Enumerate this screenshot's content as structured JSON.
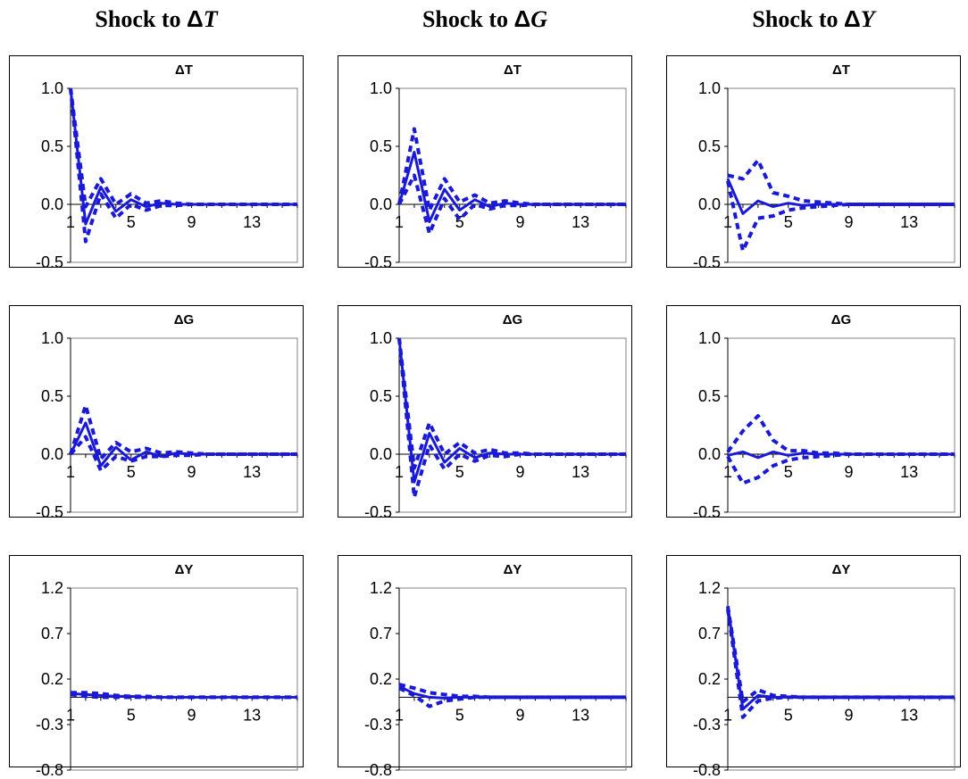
{
  "column_titles": [
    {
      "prefix": "Shock to ",
      "delta": "Δ",
      "var": "T"
    },
    {
      "prefix": "Shock to ",
      "delta": "Δ",
      "var": "G"
    },
    {
      "prefix": "Shock to ",
      "delta": "Δ",
      "var": "Y"
    }
  ],
  "colors": {
    "series": "#1a1ad6",
    "axis": "#000000",
    "plotBorder": "#808080"
  },
  "chart_data": [
    {
      "type": "line",
      "shock": "ΔT",
      "title": "ΔT",
      "ylim": [
        -0.5,
        1.0
      ],
      "yticks": [
        "1.0",
        "0.5",
        "0.0",
        "-0.5"
      ],
      "xticks": [
        "1",
        "5",
        "9",
        "13"
      ],
      "series": [
        {
          "style": "solid",
          "values": [
            1.0,
            -0.17,
            0.15,
            -0.06,
            0.04,
            -0.02,
            0.01,
            0,
            0,
            0,
            0,
            0,
            0,
            0,
            0,
            0
          ]
        },
        {
          "style": "dashed",
          "values": [
            1.0,
            -0.32,
            0.09,
            -0.12,
            0.0,
            -0.05,
            -0.01,
            -0.01,
            0,
            0,
            0,
            0,
            0,
            0,
            0,
            0
          ]
        },
        {
          "style": "dashed",
          "values": [
            1.0,
            -0.02,
            0.22,
            0.0,
            0.09,
            0.01,
            0.03,
            0.01,
            0,
            0,
            0,
            0,
            0,
            0,
            0,
            0
          ]
        }
      ]
    },
    {
      "type": "line",
      "shock": "ΔG",
      "title": "ΔT",
      "ylim": [
        -0.5,
        1.0
      ],
      "yticks": [
        "1.0",
        "0.5",
        "0.0",
        "-0.5"
      ],
      "xticks": [
        "1",
        "5",
        "9",
        "13"
      ],
      "series": [
        {
          "style": "solid",
          "values": [
            0.0,
            0.45,
            -0.15,
            0.13,
            -0.05,
            0.04,
            -0.02,
            0.01,
            0,
            0,
            0,
            0,
            0,
            0,
            0,
            0
          ]
        },
        {
          "style": "dashed",
          "values": [
            0.0,
            0.25,
            -0.25,
            0.05,
            -0.13,
            0.0,
            -0.04,
            -0.01,
            -0.01,
            0,
            0,
            0,
            0,
            0,
            0,
            0
          ]
        },
        {
          "style": "dashed",
          "values": [
            0.0,
            0.65,
            -0.05,
            0.22,
            0.02,
            0.08,
            0.01,
            0.03,
            0.01,
            0,
            0,
            0,
            0,
            0,
            0,
            0
          ]
        }
      ]
    },
    {
      "type": "line",
      "shock": "ΔY",
      "title": "ΔT",
      "ylim": [
        -0.5,
        1.0
      ],
      "yticks": [
        "1.0",
        "0.5",
        "0.0",
        "-0.5"
      ],
      "xticks": [
        "1",
        "5",
        "9",
        "13"
      ],
      "series": [
        {
          "style": "solid",
          "values": [
            0.22,
            -0.08,
            0.03,
            -0.02,
            0.01,
            -0.01,
            0,
            0,
            0,
            0,
            0,
            0,
            0,
            0,
            0,
            0
          ]
        },
        {
          "style": "dashed",
          "values": [
            0.2,
            -0.4,
            -0.12,
            -0.1,
            -0.05,
            -0.03,
            -0.02,
            -0.01,
            0,
            0,
            0,
            0,
            0,
            0,
            0,
            0
          ]
        },
        {
          "style": "dashed",
          "values": [
            0.25,
            0.22,
            0.38,
            0.1,
            0.07,
            0.03,
            0.02,
            0.01,
            0,
            0,
            0,
            0,
            0,
            0,
            0,
            0
          ]
        }
      ]
    },
    {
      "type": "line",
      "shock": "ΔT",
      "title": "ΔG",
      "ylim": [
        -0.5,
        1.0
      ],
      "yticks": [
        "1.0",
        "0.5",
        "0.0",
        "-0.5"
      ],
      "xticks": [
        "1",
        "5",
        "9",
        "13"
      ],
      "series": [
        {
          "style": "solid",
          "values": [
            0.0,
            0.27,
            -0.1,
            0.06,
            -0.05,
            0.02,
            -0.02,
            0.01,
            0,
            0,
            0,
            0,
            0,
            0,
            0,
            0
          ]
        },
        {
          "style": "dashed",
          "values": [
            0.0,
            0.15,
            -0.14,
            -0.02,
            -0.06,
            -0.02,
            -0.02,
            -0.01,
            -0.01,
            0,
            0,
            0,
            0,
            0,
            0,
            0
          ]
        },
        {
          "style": "dashed",
          "values": [
            0.0,
            0.42,
            -0.04,
            0.1,
            0.02,
            0.05,
            0.01,
            0.02,
            0.01,
            0,
            0,
            0,
            0,
            0,
            0,
            0
          ]
        }
      ]
    },
    {
      "type": "line",
      "shock": "ΔG",
      "title": "ΔG",
      "ylim": [
        -0.5,
        1.0
      ],
      "yticks": [
        "1.0",
        "0.5",
        "0.0",
        "-0.5"
      ],
      "xticks": [
        "1",
        "5",
        "9",
        "13"
      ],
      "series": [
        {
          "style": "solid",
          "values": [
            1.0,
            -0.24,
            0.18,
            -0.07,
            0.05,
            -0.03,
            0.01,
            0,
            0,
            0,
            0,
            0,
            0,
            0,
            0,
            0
          ]
        },
        {
          "style": "dashed",
          "values": [
            1.0,
            -0.37,
            0.08,
            -0.13,
            0.0,
            -0.06,
            -0.01,
            -0.02,
            0,
            0,
            0,
            0,
            0,
            0,
            0,
            0
          ]
        },
        {
          "style": "dashed",
          "values": [
            1.0,
            -0.12,
            0.27,
            0.0,
            0.1,
            0.01,
            0.04,
            0.01,
            0.01,
            0,
            0,
            0,
            0,
            0,
            0,
            0
          ]
        }
      ]
    },
    {
      "type": "line",
      "shock": "ΔY",
      "title": "ΔG",
      "ylim": [
        -0.5,
        1.0
      ],
      "yticks": [
        "1.0",
        "0.5",
        "0.0",
        "-0.5"
      ],
      "xticks": [
        "1",
        "5",
        "9",
        "13"
      ],
      "series": [
        {
          "style": "solid",
          "values": [
            -0.01,
            0.02,
            -0.03,
            0.02,
            -0.01,
            0.01,
            0,
            0,
            0,
            0,
            0,
            0,
            0,
            0,
            0,
            0
          ]
        },
        {
          "style": "dashed",
          "values": [
            -0.02,
            -0.25,
            -0.2,
            -0.1,
            -0.05,
            -0.03,
            -0.02,
            -0.01,
            0,
            0,
            0,
            0,
            0,
            0,
            0,
            0
          ]
        },
        {
          "style": "dashed",
          "values": [
            0.02,
            0.2,
            0.33,
            0.12,
            0.03,
            0.03,
            0.01,
            0.01,
            0,
            0,
            0,
            0,
            0,
            0,
            0,
            0
          ]
        }
      ]
    },
    {
      "type": "line",
      "shock": "ΔT",
      "title": "ΔY",
      "ylim": [
        -0.8,
        1.2
      ],
      "yticks": [
        "1.2",
        "0.7",
        "0.2",
        "-0.3",
        "-0.8"
      ],
      "xticks": [
        "1",
        "5",
        "9",
        "13"
      ],
      "series": [
        {
          "style": "solid",
          "values": [
            0.04,
            0.03,
            0.02,
            0.01,
            0.01,
            0,
            0,
            0,
            0,
            0,
            0,
            0,
            0,
            0,
            0,
            0
          ]
        },
        {
          "style": "dashed",
          "values": [
            0.03,
            0.01,
            0.0,
            0.0,
            0,
            0,
            0,
            0,
            0,
            0,
            0,
            0,
            0,
            0,
            0,
            0
          ]
        },
        {
          "style": "dashed",
          "values": [
            0.05,
            0.05,
            0.04,
            0.02,
            0.01,
            0.01,
            0,
            0,
            0,
            0,
            0,
            0,
            0,
            0,
            0,
            0
          ]
        }
      ]
    },
    {
      "type": "line",
      "shock": "ΔG",
      "title": "ΔY",
      "ylim": [
        -0.8,
        1.2
      ],
      "yticks": [
        "1.2",
        "0.7",
        "0.2",
        "-0.3",
        "-0.8"
      ],
      "xticks": [
        "1",
        "5",
        "9",
        "13"
      ],
      "series": [
        {
          "style": "solid",
          "values": [
            0.12,
            0.04,
            0.0,
            -0.01,
            0.0,
            0,
            0,
            0,
            0,
            0,
            0,
            0,
            0,
            0,
            0,
            0
          ]
        },
        {
          "style": "dashed",
          "values": [
            0.1,
            0.02,
            -0.1,
            -0.04,
            -0.02,
            0,
            0,
            0,
            0,
            0,
            0,
            0,
            0,
            0,
            0,
            0
          ]
        },
        {
          "style": "dashed",
          "values": [
            0.14,
            0.1,
            0.05,
            0.03,
            0.01,
            0.01,
            0,
            0,
            0,
            0,
            0,
            0,
            0,
            0,
            0,
            0
          ]
        }
      ]
    },
    {
      "type": "line",
      "shock": "ΔY",
      "title": "ΔY",
      "ylim": [
        -0.8,
        1.2
      ],
      "yticks": [
        "1.2",
        "0.7",
        "0.2",
        "-0.3",
        "-0.8"
      ],
      "xticks": [
        "1",
        "5",
        "9",
        "13"
      ],
      "series": [
        {
          "style": "solid",
          "values": [
            1.0,
            -0.13,
            0.02,
            0.0,
            0.0,
            0,
            0,
            0,
            0,
            0,
            0,
            0,
            0,
            0,
            0,
            0
          ]
        },
        {
          "style": "dashed",
          "values": [
            0.97,
            -0.22,
            -0.04,
            -0.01,
            0,
            0,
            0,
            0,
            0,
            0,
            0,
            0,
            0,
            0,
            0,
            0
          ]
        },
        {
          "style": "dashed",
          "values": [
            1.0,
            -0.05,
            0.08,
            0.02,
            0.01,
            0,
            0,
            0,
            0,
            0,
            0,
            0,
            0,
            0,
            0,
            0
          ]
        }
      ]
    }
  ]
}
